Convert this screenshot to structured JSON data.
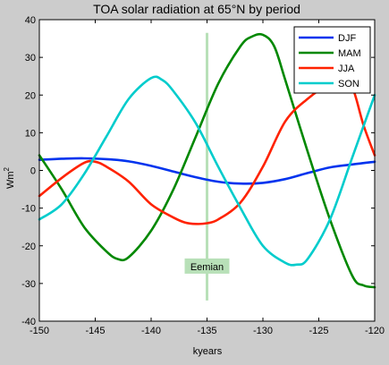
{
  "chart_data": {
    "type": "line",
    "title": "TOA solar radiation at 65°N by period",
    "xlabel": "kyears",
    "ylabel": "Wm",
    "ylabel_superscript": "2",
    "xlim": [
      -150,
      -120
    ],
    "ylim": [
      -40,
      40
    ],
    "xticks": [
      -150,
      -145,
      -140,
      -135,
      -130,
      -125,
      -120
    ],
    "yticks": [
      -40,
      -30,
      -20,
      -10,
      0,
      10,
      20,
      30,
      40
    ],
    "grid": false,
    "legend_position": "top-right",
    "annotation": {
      "label": "Eemian",
      "x": -135,
      "y": -25.5,
      "line_color": "#b8e0b8"
    },
    "series": [
      {
        "name": "DJF",
        "color": "#0033ee",
        "x": [
          -150,
          -148,
          -146,
          -144,
          -142,
          -140,
          -138,
          -136,
          -134,
          -132,
          -130,
          -128,
          -126,
          -124,
          -122,
          -120
        ],
        "y": [
          2.8,
          3.1,
          3.2,
          3.0,
          2.4,
          1.2,
          -0.3,
          -1.8,
          -3.0,
          -3.5,
          -3.3,
          -2.3,
          -0.7,
          0.8,
          1.6,
          2.3
        ]
      },
      {
        "name": "MAM",
        "color": "#008800",
        "x": [
          -150,
          -148,
          -146,
          -144,
          -143,
          -142,
          -140,
          -138,
          -136,
          -134,
          -132,
          -131,
          -130,
          -129,
          -128,
          -126,
          -124,
          -122,
          -121,
          -120
        ],
        "y": [
          4,
          -5,
          -15,
          -21.5,
          -23.5,
          -23,
          -16,
          -5,
          9,
          23,
          33,
          35.5,
          36,
          33,
          24,
          5,
          -13,
          -28,
          -30.5,
          -31
        ]
      },
      {
        "name": "JJA",
        "color": "#ff2200",
        "x": [
          -150,
          -148,
          -146,
          -145,
          -144,
          -142,
          -140,
          -138,
          -137,
          -136,
          -135,
          -134,
          -132,
          -130,
          -128,
          -126,
          -124,
          -123,
          -122,
          -121,
          -120
        ],
        "y": [
          -6.8,
          -2,
          2,
          2.3,
          1,
          -3,
          -9,
          -12.5,
          -13.8,
          -14.2,
          -14,
          -13,
          -8.5,
          1,
          13,
          19,
          23,
          23.5,
          22,
          12,
          4
        ]
      },
      {
        "name": "SON",
        "color": "#00cccc",
        "x": [
          -150,
          -148,
          -146,
          -144,
          -142,
          -140,
          -139,
          -138,
          -136,
          -134,
          -132,
          -130,
          -128,
          -127,
          -126,
          -124,
          -122,
          -120
        ],
        "y": [
          -13,
          -9,
          -1,
          9,
          19,
          24.5,
          24,
          21,
          12.5,
          1,
          -10,
          -20,
          -24.5,
          -25,
          -23.5,
          -13,
          3.5,
          20
        ]
      }
    ]
  }
}
